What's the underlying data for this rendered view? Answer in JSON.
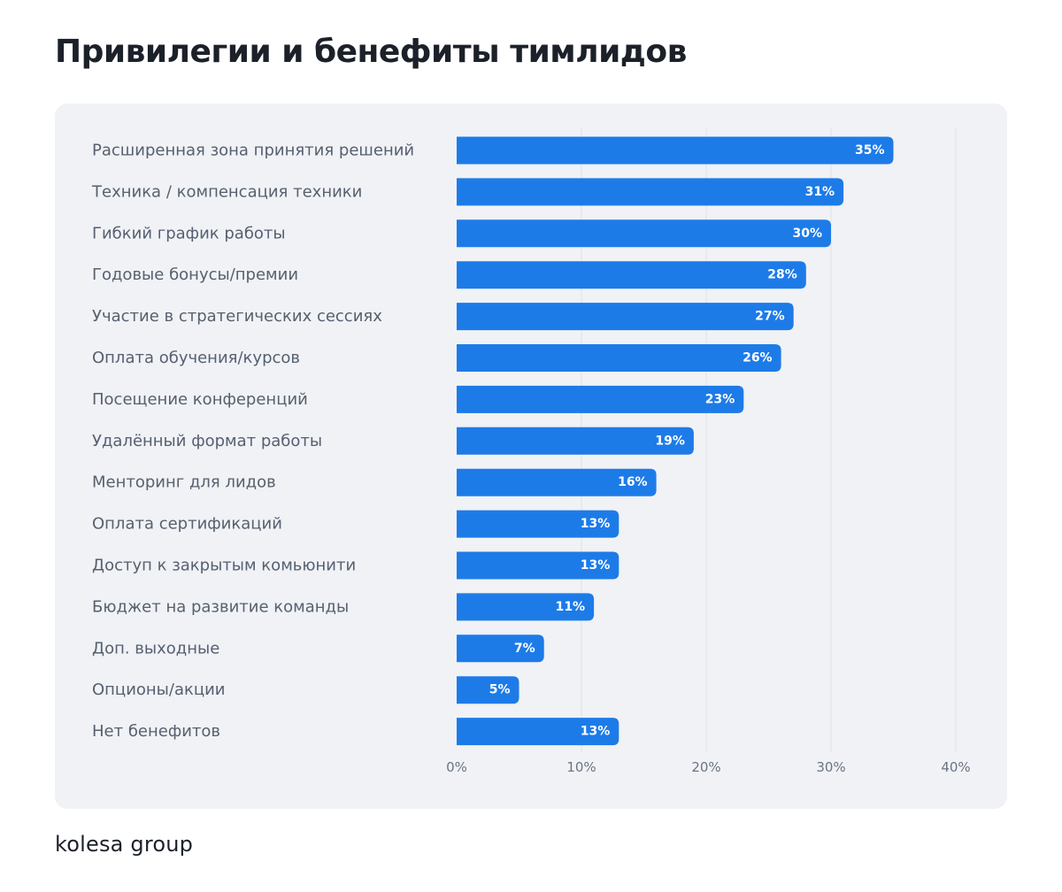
{
  "page": {
    "title": "Привилегии и бенефиты тимлидов",
    "brand": "kolesa group"
  },
  "colors": {
    "bar": "#1d7be8",
    "card_background": "#f0f2f6",
    "gridline": "#dfe2e8",
    "category_text": "#56606f",
    "title_text": "#1c2129"
  },
  "chart_data": {
    "type": "bar",
    "orientation": "horizontal",
    "title": "Привилегии и бенефиты тимлидов",
    "xlabel": "",
    "ylabel": "",
    "unit": "%",
    "categories": [
      "Расширенная зона принятия решений",
      "Техника / компенсация техники",
      "Гибкий график работы",
      "Годовые бонусы/премии",
      "Участие в стратегических сессиях",
      "Оплата обучения/курсов",
      "Посещение конференций",
      "Удалённый формат работы",
      "Менторинг для лидов",
      "Оплата сертификаций",
      "Доступ к закрытым комьюнити",
      "Бюджет на развитие команды",
      "Доп. выходные",
      "Опционы/акции",
      "Нет бенефитов"
    ],
    "values": [
      35,
      31,
      30,
      28,
      27,
      26,
      23,
      19,
      16,
      13,
      13,
      11,
      7,
      5,
      13
    ],
    "data_labels": [
      "35%",
      "31%",
      "30%",
      "28%",
      "27%",
      "26%",
      "23%",
      "19%",
      "16%",
      "13%",
      "13%",
      "11%",
      "7%",
      "5%",
      "13%"
    ],
    "xlim": [
      0,
      40
    ],
    "ticks": [
      0,
      10,
      20,
      30,
      40
    ],
    "tick_labels": [
      "0%",
      "10%",
      "20%",
      "30%",
      "40%"
    ],
    "grid": true,
    "legend": "none"
  }
}
